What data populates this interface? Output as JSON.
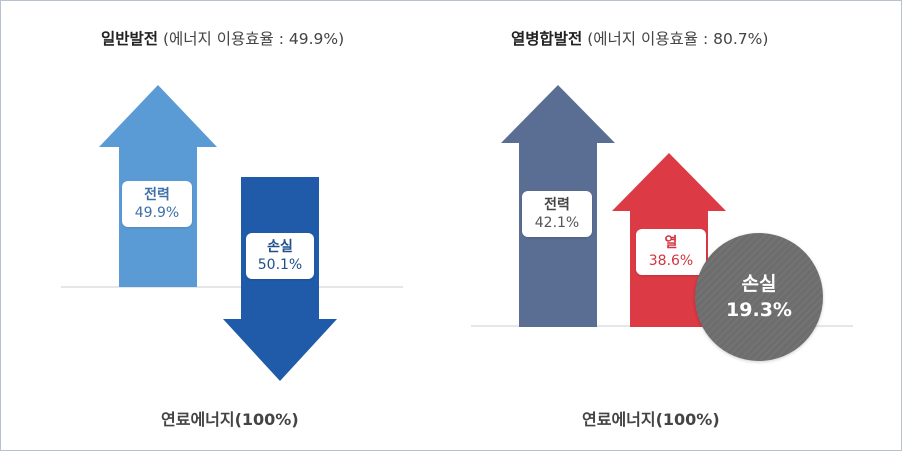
{
  "left": {
    "title_strong": "일반발전",
    "title_sub": " (에너지 이용효율 : 49.9%)",
    "up": {
      "name": "전력",
      "value": "49.9%",
      "color": "#5b9bd5"
    },
    "down": {
      "name": "손실",
      "value": "50.1%",
      "color": "#1f5ba8"
    },
    "footer": "연료에너지(100%)"
  },
  "right": {
    "title_strong": "열병합발전",
    "title_sub": " (에너지 이용효율 : 80.7%)",
    "power": {
      "name": "전력",
      "value": "42.1%",
      "color": "#5a6e93"
    },
    "heat": {
      "name": "열",
      "value": "38.6%",
      "color": "#dc3a44"
    },
    "loss": {
      "name": "손실",
      "value": "19.3%",
      "color": "#6d6d6d"
    },
    "footer": "연료에너지(100%)"
  }
}
